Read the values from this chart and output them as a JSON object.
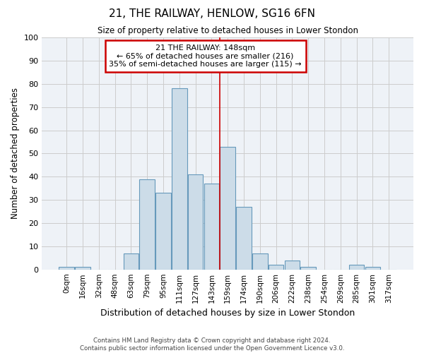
{
  "title": "21, THE RAILWAY, HENLOW, SG16 6FN",
  "subtitle": "Size of property relative to detached houses in Lower Stondon",
  "xlabel": "Distribution of detached houses by size in Lower Stondon",
  "ylabel": "Number of detached properties",
  "bar_labels": [
    "0sqm",
    "16sqm",
    "32sqm",
    "48sqm",
    "63sqm",
    "79sqm",
    "95sqm",
    "111sqm",
    "127sqm",
    "143sqm",
    "159sqm",
    "174sqm",
    "190sqm",
    "206sqm",
    "222sqm",
    "238sqm",
    "254sqm",
    "269sqm",
    "285sqm",
    "301sqm",
    "317sqm"
  ],
  "bar_values": [
    1,
    1,
    0,
    0,
    7,
    39,
    33,
    78,
    41,
    37,
    53,
    27,
    7,
    2,
    4,
    1,
    0,
    0,
    2,
    1,
    0
  ],
  "bar_color": "#ccdce8",
  "bar_edge_color": "#6699bb",
  "grid_color": "#cccccc",
  "background_color": "#eef2f7",
  "property_label": "21 THE RAILWAY: 148sqm",
  "annotation_line1": "← 65% of detached houses are smaller (216)",
  "annotation_line2": "35% of semi-detached houses are larger (115) →",
  "vline_color": "#cc0000",
  "annotation_box_color": "#cc0000",
  "footer_line1": "Contains HM Land Registry data © Crown copyright and database right 2024.",
  "footer_line2": "Contains public sector information licensed under the Open Government Licence v3.0.",
  "ylim": [
    0,
    100
  ],
  "yticks": [
    0,
    10,
    20,
    30,
    40,
    50,
    60,
    70,
    80,
    90,
    100
  ],
  "vline_index": 10.0
}
